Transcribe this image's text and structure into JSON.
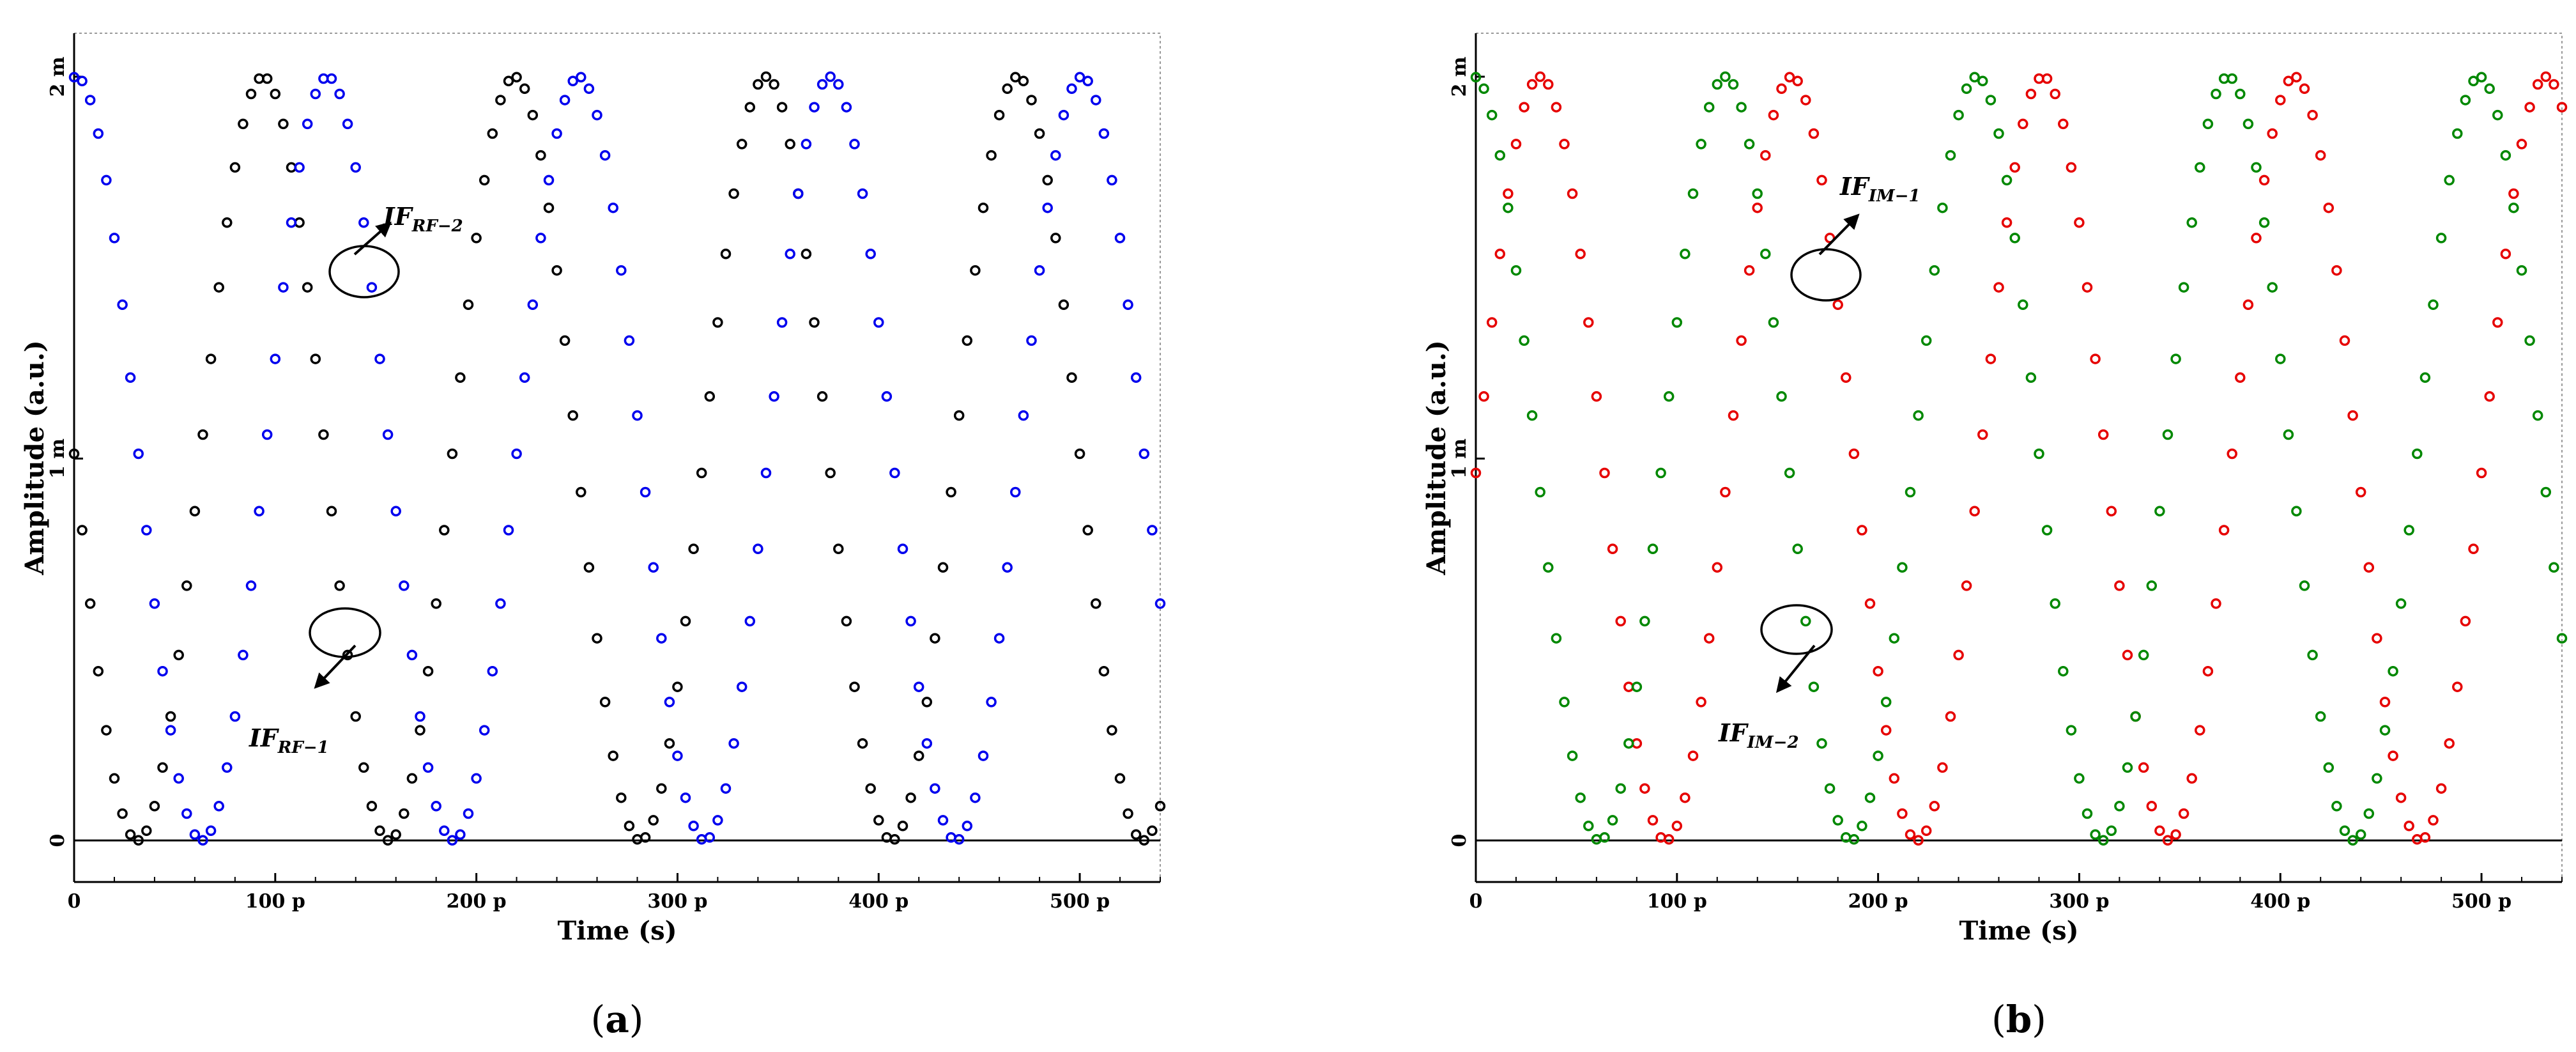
{
  "chart_data": [
    {
      "type": "scatter",
      "panel_label": "a",
      "caption_open": "(",
      "caption_close": ")",
      "xlabel": "Time (s)",
      "ylabel": "Amplitude (a.u.)",
      "xlim": [
        0,
        540
      ],
      "ylim": [
        -0.1,
        2.06
      ],
      "x_ticks": [
        {
          "value": 0,
          "label": "0"
        },
        {
          "value": 100,
          "label": "100 p"
        },
        {
          "value": 200,
          "label": "200 p"
        },
        {
          "value": 300,
          "label": "300 p"
        },
        {
          "value": 400,
          "label": "400 p"
        },
        {
          "value": 500,
          "label": "500 p"
        }
      ],
      "y_ticks": [
        {
          "value": 0,
          "label": "0"
        },
        {
          "value": 1,
          "label": "1 m"
        },
        {
          "value": 2,
          "label": "2 m"
        }
      ],
      "series": [
        {
          "name": "IF_RF-1",
          "color": "#000000",
          "model": "1+cos(2*pi*(t-t0)/period)",
          "t0": 94,
          "period": 125,
          "x_start": 0,
          "x_end": 540,
          "step": 4
        },
        {
          "name": "IF_RF-2",
          "color": "#0000ee",
          "model": "1+cos(2*pi*(t-t0)/period)",
          "t0": 1,
          "period": 125,
          "x_start": 0,
          "x_end": 540,
          "step": 4
        }
      ],
      "annotations": [
        {
          "main": "IF",
          "sub": "RF−2"
        },
        {
          "main": "IF",
          "sub": "RF−1"
        }
      ]
    },
    {
      "type": "scatter",
      "panel_label": "b",
      "caption_open": "(",
      "caption_close": ")",
      "xlabel": "Time (s)",
      "ylabel": "Amplitude (a.u.)",
      "xlim": [
        0,
        540
      ],
      "ylim": [
        -0.1,
        2.06
      ],
      "x_ticks": [
        {
          "value": 0,
          "label": "0"
        },
        {
          "value": 100,
          "label": "100 p"
        },
        {
          "value": 200,
          "label": "200 p"
        },
        {
          "value": 300,
          "label": "300 p"
        },
        {
          "value": 400,
          "label": "400 p"
        },
        {
          "value": 500,
          "label": "500 p"
        }
      ],
      "y_ticks": [
        {
          "value": 0,
          "label": "0"
        },
        {
          "value": 1,
          "label": "1 m"
        },
        {
          "value": 2,
          "label": "2 m"
        }
      ],
      "series": [
        {
          "name": "IF_IM-1",
          "color": "#e60000",
          "model": "1+cos(2*pi*(t-t0)/period)",
          "t0": 32,
          "period": 125,
          "x_start": 0,
          "x_end": 540,
          "step": 4
        },
        {
          "name": "IF_IM-2",
          "color": "#008800",
          "model": "1+cos(2*pi*(t-t0)/period)",
          "t0": -1,
          "period": 125,
          "x_start": 0,
          "x_end": 540,
          "step": 4
        }
      ],
      "annotations": [
        {
          "main": "IF",
          "sub": "IM−1"
        },
        {
          "main": "IF",
          "sub": "IM−2"
        }
      ]
    }
  ]
}
